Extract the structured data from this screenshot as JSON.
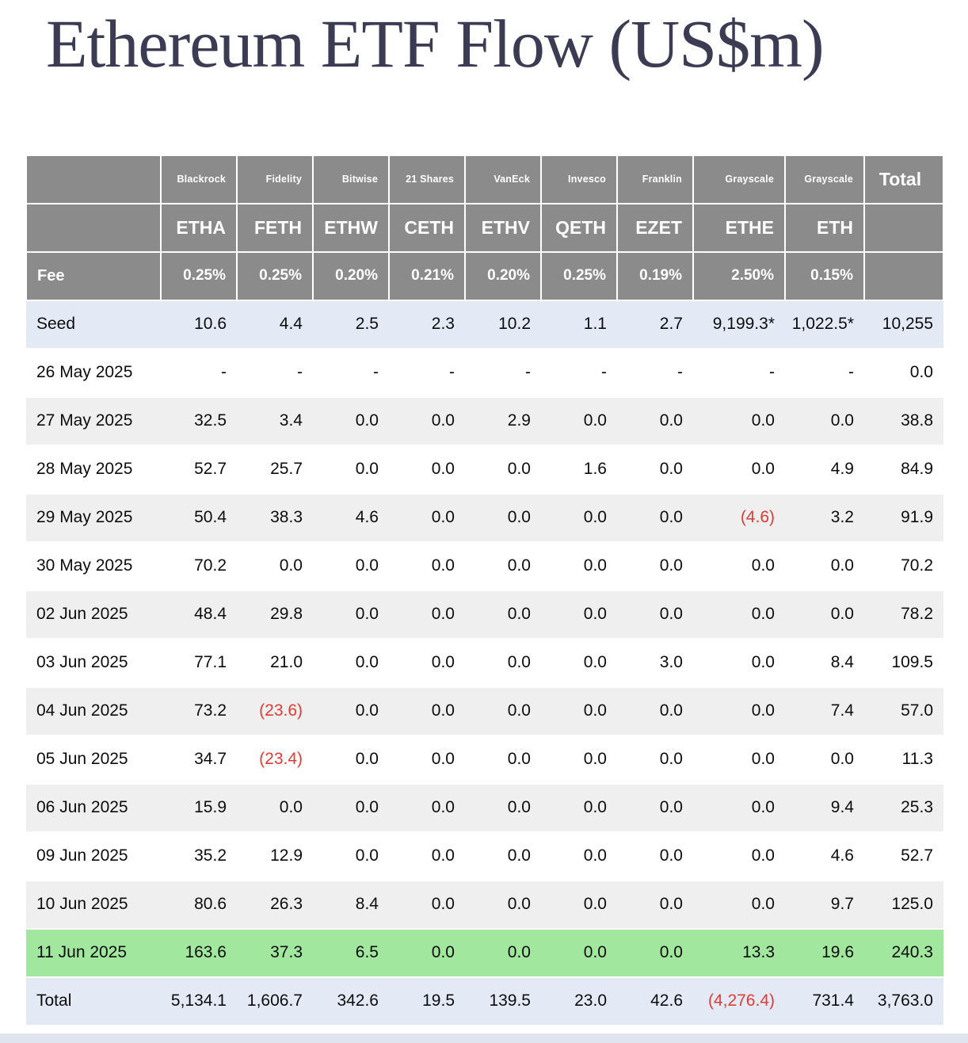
{
  "colors": {
    "page_bg": "#ffffff",
    "title": "#3b3b54",
    "header_bg": "#8b8b8b",
    "header_text": "#ffffff",
    "row_band": "#e4e9f6",
    "row_alt": "#efefef",
    "row_highlight": "#a1e79d",
    "negative": "#e23b34",
    "text": "#0d0d0d",
    "bottom_strip": "#dfe4ef"
  },
  "chart_data": {
    "type": "table",
    "title": "Ethereum ETF Flow (US$m)",
    "header": {
      "fee_label": "Fee",
      "total_label": "Total",
      "columns": [
        {
          "issuer": "Blackrock",
          "ticker": "ETHA",
          "fee": "0.25%"
        },
        {
          "issuer": "Fidelity",
          "ticker": "FETH",
          "fee": "0.25%"
        },
        {
          "issuer": "Bitwise",
          "ticker": "ETHW",
          "fee": "0.20%"
        },
        {
          "issuer": "21 Shares",
          "ticker": "CETH",
          "fee": "0.21%"
        },
        {
          "issuer": "VanEck",
          "ticker": "ETHV",
          "fee": "0.20%"
        },
        {
          "issuer": "Invesco",
          "ticker": "QETH",
          "fee": "0.25%"
        },
        {
          "issuer": "Franklin",
          "ticker": "EZET",
          "fee": "0.19%"
        },
        {
          "issuer": "Grayscale",
          "ticker": "ETHE",
          "fee": "2.50%"
        },
        {
          "issuer": "Grayscale",
          "ticker": "ETH",
          "fee": "0.15%"
        }
      ]
    },
    "rows": [
      {
        "label": "Seed",
        "style": "seed",
        "values": [
          "10.6",
          "4.4",
          "2.5",
          "2.3",
          "10.2",
          "1.1",
          "2.7",
          "9,199.3*",
          "1,022.5*"
        ],
        "total": "10,255"
      },
      {
        "label": "26 May 2025",
        "style": "plain",
        "values": [
          "-",
          "-",
          "-",
          "-",
          "-",
          "-",
          "-",
          "-",
          "-"
        ],
        "total": "0.0"
      },
      {
        "label": "27 May 2025",
        "style": "alt",
        "values": [
          "32.5",
          "3.4",
          "0.0",
          "0.0",
          "2.9",
          "0.0",
          "0.0",
          "0.0",
          "0.0"
        ],
        "total": "38.8"
      },
      {
        "label": "28 May 2025",
        "style": "plain",
        "values": [
          "52.7",
          "25.7",
          "0.0",
          "0.0",
          "0.0",
          "1.6",
          "0.0",
          "0.0",
          "4.9"
        ],
        "total": "84.9"
      },
      {
        "label": "29 May 2025",
        "style": "alt",
        "values": [
          "50.4",
          "38.3",
          "4.6",
          "0.0",
          "0.0",
          "0.0",
          "0.0",
          "(4.6)",
          "3.2"
        ],
        "total": "91.9"
      },
      {
        "label": "30 May 2025",
        "style": "plain",
        "values": [
          "70.2",
          "0.0",
          "0.0",
          "0.0",
          "0.0",
          "0.0",
          "0.0",
          "0.0",
          "0.0"
        ],
        "total": "70.2"
      },
      {
        "label": "02 Jun 2025",
        "style": "alt",
        "values": [
          "48.4",
          "29.8",
          "0.0",
          "0.0",
          "0.0",
          "0.0",
          "0.0",
          "0.0",
          "0.0"
        ],
        "total": "78.2"
      },
      {
        "label": "03 Jun 2025",
        "style": "plain",
        "values": [
          "77.1",
          "21.0",
          "0.0",
          "0.0",
          "0.0",
          "0.0",
          "3.0",
          "0.0",
          "8.4"
        ],
        "total": "109.5"
      },
      {
        "label": "04 Jun 2025",
        "style": "alt",
        "values": [
          "73.2",
          "(23.6)",
          "0.0",
          "0.0",
          "0.0",
          "0.0",
          "0.0",
          "0.0",
          "7.4"
        ],
        "total": "57.0"
      },
      {
        "label": "05 Jun 2025",
        "style": "plain",
        "values": [
          "34.7",
          "(23.4)",
          "0.0",
          "0.0",
          "0.0",
          "0.0",
          "0.0",
          "0.0",
          "0.0"
        ],
        "total": "11.3"
      },
      {
        "label": "06 Jun 2025",
        "style": "alt",
        "values": [
          "15.9",
          "0.0",
          "0.0",
          "0.0",
          "0.0",
          "0.0",
          "0.0",
          "0.0",
          "9.4"
        ],
        "total": "25.3"
      },
      {
        "label": "09 Jun 2025",
        "style": "plain",
        "values": [
          "35.2",
          "12.9",
          "0.0",
          "0.0",
          "0.0",
          "0.0",
          "0.0",
          "0.0",
          "4.6"
        ],
        "total": "52.7"
      },
      {
        "label": "10 Jun 2025",
        "style": "alt",
        "values": [
          "80.6",
          "26.3",
          "8.4",
          "0.0",
          "0.0",
          "0.0",
          "0.0",
          "0.0",
          "9.7"
        ],
        "total": "125.0"
      },
      {
        "label": "11 Jun 2025",
        "style": "highlight",
        "values": [
          "163.6",
          "37.3",
          "6.5",
          "0.0",
          "0.0",
          "0.0",
          "0.0",
          "13.3",
          "19.6"
        ],
        "total": "240.3"
      },
      {
        "label": "Total",
        "style": "total",
        "values": [
          "5,134.1",
          "1,606.7",
          "342.6",
          "19.5",
          "139.5",
          "23.0",
          "42.6",
          "(4,276.4)",
          "731.4"
        ],
        "total": "3,763.0"
      }
    ]
  }
}
